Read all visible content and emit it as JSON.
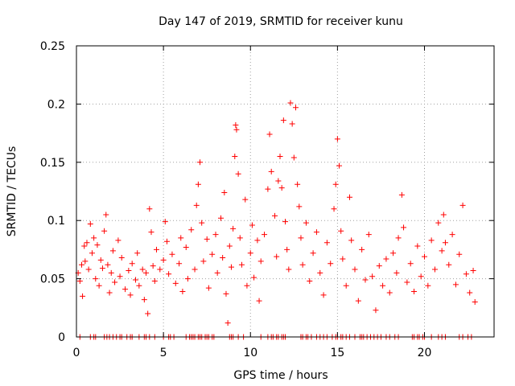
{
  "chart_data": {
    "type": "scatter",
    "title": "Day 147 of 2019, SRMTID for receiver kunu",
    "xlabel": "GPS time / hours",
    "ylabel": "SRMTID / TECUs",
    "xlim": [
      0,
      24
    ],
    "ylim": [
      0,
      0.25
    ],
    "grid": true,
    "marker": "+",
    "color": "#ff0000",
    "x_ticks": [
      0,
      5,
      10,
      15,
      20
    ],
    "x_tick_labels": [
      "0",
      "5",
      "10",
      "15",
      "20"
    ],
    "y_ticks": [
      0,
      0.05,
      0.1,
      0.15,
      0.2,
      0.25
    ],
    "y_tick_labels": [
      "0",
      "0.05",
      "0.1",
      "0.15",
      "0.2",
      "0.25"
    ],
    "series": [
      {
        "name": "SRMTID",
        "points": [
          [
            0.1,
            0.055
          ],
          [
            0.2,
            0.048
          ],
          [
            0.3,
            0.062
          ],
          [
            0.35,
            0.035
          ],
          [
            0.45,
            0.078
          ],
          [
            0.5,
            0.065
          ],
          [
            0.6,
            0.081
          ],
          [
            0.7,
            0.058
          ],
          [
            0.8,
            0.097
          ],
          [
            0.9,
            0.072
          ],
          [
            1.0,
            0.085
          ],
          [
            1.1,
            0.05
          ],
          [
            1.2,
            0.079
          ],
          [
            1.3,
            0.044
          ],
          [
            1.4,
            0.066
          ],
          [
            1.5,
            0.059
          ],
          [
            1.6,
            0.091
          ],
          [
            1.7,
            0.105
          ],
          [
            1.8,
            0.062
          ],
          [
            1.9,
            0.038
          ],
          [
            2.0,
            0.055
          ],
          [
            2.1,
            0.074
          ],
          [
            2.2,
            0.047
          ],
          [
            2.4,
            0.083
          ],
          [
            2.5,
            0.052
          ],
          [
            2.6,
            0.068
          ],
          [
            2.8,
            0.041
          ],
          [
            3.0,
            0.057
          ],
          [
            3.1,
            0.036
          ],
          [
            3.2,
            0.063
          ],
          [
            3.4,
            0.049
          ],
          [
            3.5,
            0.072
          ],
          [
            3.6,
            0.044
          ],
          [
            3.8,
            0.058
          ],
          [
            3.9,
            0.032
          ],
          [
            4.0,
            0.055
          ],
          [
            4.1,
            0.02
          ],
          [
            4.2,
            0.11
          ],
          [
            4.3,
            0.09
          ],
          [
            4.4,
            0.061
          ],
          [
            4.5,
            0.048
          ],
          [
            4.6,
            0.075
          ],
          [
            4.8,
            0.058
          ],
          [
            5.0,
            0.066
          ],
          [
            5.1,
            0.099
          ],
          [
            5.2,
            0.082
          ],
          [
            5.3,
            0.054
          ],
          [
            5.5,
            0.071
          ],
          [
            5.7,
            0.046
          ],
          [
            5.9,
            0.063
          ],
          [
            6.0,
            0.085
          ],
          [
            6.1,
            0.039
          ],
          [
            6.3,
            0.077
          ],
          [
            6.4,
            0.05
          ],
          [
            6.6,
            0.092
          ],
          [
            6.8,
            0.058
          ],
          [
            6.9,
            0.113
          ],
          [
            7.0,
            0.131
          ],
          [
            7.1,
            0.15
          ],
          [
            7.2,
            0.098
          ],
          [
            7.3,
            0.065
          ],
          [
            7.5,
            0.084
          ],
          [
            7.6,
            0.042
          ],
          [
            7.8,
            0.071
          ],
          [
            8.0,
            0.088
          ],
          [
            8.1,
            0.055
          ],
          [
            8.3,
            0.102
          ],
          [
            8.4,
            0.068
          ],
          [
            8.5,
            0.124
          ],
          [
            8.6,
            0.037
          ],
          [
            8.7,
            0.012
          ],
          [
            8.8,
            0.078
          ],
          [
            8.9,
            0.06
          ],
          [
            9.0,
            0.093
          ],
          [
            9.1,
            0.155
          ],
          [
            9.15,
            0.182
          ],
          [
            9.2,
            0.178
          ],
          [
            9.3,
            0.14
          ],
          [
            9.4,
            0.085
          ],
          [
            9.5,
            0.062
          ],
          [
            9.7,
            0.118
          ],
          [
            9.8,
            0.044
          ],
          [
            10.0,
            0.072
          ],
          [
            10.1,
            0.096
          ],
          [
            10.2,
            0.051
          ],
          [
            10.4,
            0.083
          ],
          [
            10.5,
            0.031
          ],
          [
            10.6,
            0.065
          ],
          [
            10.8,
            0.088
          ],
          [
            11.0,
            0.127
          ],
          [
            11.1,
            0.174
          ],
          [
            11.2,
            0.142
          ],
          [
            11.4,
            0.104
          ],
          [
            11.5,
            0.069
          ],
          [
            11.6,
            0.134
          ],
          [
            11.7,
            0.155
          ],
          [
            11.8,
            0.128
          ],
          [
            11.9,
            0.186
          ],
          [
            12.0,
            0.099
          ],
          [
            12.1,
            0.075
          ],
          [
            12.2,
            0.058
          ],
          [
            12.3,
            0.201
          ],
          [
            12.4,
            0.183
          ],
          [
            12.5,
            0.154
          ],
          [
            12.6,
            0.197
          ],
          [
            12.7,
            0.131
          ],
          [
            12.8,
            0.112
          ],
          [
            12.9,
            0.085
          ],
          [
            13.0,
            0.062
          ],
          [
            13.2,
            0.098
          ],
          [
            13.4,
            0.048
          ],
          [
            13.6,
            0.072
          ],
          [
            13.8,
            0.09
          ],
          [
            14.0,
            0.055
          ],
          [
            14.2,
            0.036
          ],
          [
            14.4,
            0.081
          ],
          [
            14.6,
            0.063
          ],
          [
            14.8,
            0.11
          ],
          [
            14.9,
            0.131
          ],
          [
            15.0,
            0.17
          ],
          [
            15.1,
            0.147
          ],
          [
            15.2,
            0.091
          ],
          [
            15.3,
            0.067
          ],
          [
            15.5,
            0.044
          ],
          [
            15.7,
            0.12
          ],
          [
            15.8,
            0.083
          ],
          [
            16.0,
            0.058
          ],
          [
            16.2,
            0.031
          ],
          [
            16.4,
            0.075
          ],
          [
            16.6,
            0.049
          ],
          [
            16.8,
            0.088
          ],
          [
            17.0,
            0.052
          ],
          [
            17.2,
            0.023
          ],
          [
            17.4,
            0.061
          ],
          [
            17.6,
            0.044
          ],
          [
            17.8,
            0.067
          ],
          [
            18.0,
            0.038
          ],
          [
            18.2,
            0.072
          ],
          [
            18.4,
            0.055
          ],
          [
            18.5,
            0.085
          ],
          [
            18.7,
            0.122
          ],
          [
            18.8,
            0.094
          ],
          [
            19.0,
            0.047
          ],
          [
            19.2,
            0.063
          ],
          [
            19.4,
            0.039
          ],
          [
            19.6,
            0.078
          ],
          [
            19.8,
            0.052
          ],
          [
            20.0,
            0.069
          ],
          [
            20.2,
            0.044
          ],
          [
            20.4,
            0.083
          ],
          [
            20.6,
            0.058
          ],
          [
            20.8,
            0.098
          ],
          [
            21.0,
            0.074
          ],
          [
            21.1,
            0.105
          ],
          [
            21.2,
            0.081
          ],
          [
            21.4,
            0.062
          ],
          [
            21.6,
            0.088
          ],
          [
            21.8,
            0.045
          ],
          [
            22.0,
            0.071
          ],
          [
            22.2,
            0.113
          ],
          [
            22.4,
            0.054
          ],
          [
            22.6,
            0.038
          ],
          [
            22.8,
            0.057
          ],
          [
            22.9,
            0.03
          ]
        ],
        "zero_points_x": [
          0.2,
          0.8,
          1.0,
          1.1,
          1.6,
          1.75,
          1.9,
          2.1,
          2.3,
          2.5,
          2.6,
          2.9,
          3.1,
          3.2,
          3.6,
          3.9,
          4.0,
          4.2,
          4.5,
          5.0,
          5.3,
          5.4,
          5.6,
          6.3,
          6.5,
          6.6,
          6.7,
          6.8,
          7.0,
          7.1,
          7.2,
          7.4,
          7.5,
          7.6,
          7.8,
          7.9,
          8.8,
          8.9,
          9.0,
          9.3,
          9.6,
          10.6,
          11.0,
          11.2,
          11.3,
          11.5,
          11.6,
          11.8,
          11.9,
          12.0,
          12.9,
          13.0,
          13.2,
          13.3,
          13.5,
          13.8,
          14.0,
          14.2,
          14.4,
          14.7,
          14.9,
          15.0,
          15.2,
          15.3,
          15.5,
          15.7,
          16.0,
          16.3,
          16.4,
          16.5,
          16.7,
          16.9,
          17.1,
          17.3,
          17.5,
          17.8,
          18.0,
          18.3,
          18.5,
          19.3,
          19.4,
          19.6,
          19.7,
          19.9,
          20.0,
          20.4,
          20.8,
          21.0,
          21.2,
          22.0,
          22.2,
          22.5,
          22.7
        ]
      }
    ]
  }
}
